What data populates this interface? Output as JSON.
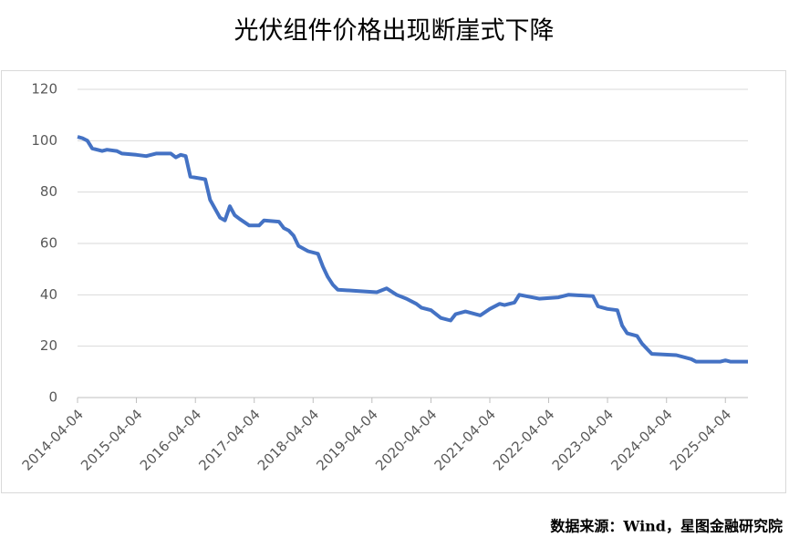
{
  "chart_data": {
    "type": "line",
    "title": "光伏组件价格出现断崖式下降",
    "source": "数据来源：Wind，星图金融研究院",
    "x": [
      "2014-04-04",
      "2014-05-04",
      "2014-06-04",
      "2014-07-04",
      "2014-09-04",
      "2014-10-04",
      "2014-12-04",
      "2015-01-04",
      "2015-04-04",
      "2015-06-04",
      "2015-08-04",
      "2015-11-04",
      "2015-12-04",
      "2016-01-04",
      "2016-02-04",
      "2016-03-04",
      "2016-06-04",
      "2016-07-04",
      "2016-09-04",
      "2016-10-04",
      "2016-11-04",
      "2016-12-04",
      "2017-01-04",
      "2017-03-04",
      "2017-05-04",
      "2017-06-04",
      "2017-09-04",
      "2017-10-04",
      "2017-11-04",
      "2017-12-04",
      "2018-01-04",
      "2018-03-04",
      "2018-05-04",
      "2018-06-04",
      "2018-07-04",
      "2018-08-04",
      "2018-09-04",
      "2019-01-04",
      "2019-05-04",
      "2019-07-04",
      "2019-09-04",
      "2019-11-04",
      "2020-01-04",
      "2020-02-04",
      "2020-04-04",
      "2020-06-04",
      "2020-08-04",
      "2020-09-04",
      "2020-11-04",
      "2021-02-04",
      "2021-04-04",
      "2021-06-04",
      "2021-07-04",
      "2021-09-04",
      "2021-10-04",
      "2022-02-04",
      "2022-06-04",
      "2022-08-04",
      "2023-01-04",
      "2023-02-04",
      "2023-04-04",
      "2023-06-04",
      "2023-07-04",
      "2023-08-04",
      "2023-10-04",
      "2023-11-04",
      "2023-12-04",
      "2024-01-04",
      "2024-06-04",
      "2024-09-04",
      "2024-10-04",
      "2025-03-04",
      "2025-04-04",
      "2025-05-04",
      "2025-08-22"
    ],
    "series": [
      {
        "name": "光伏组件价格",
        "color": "#4472c4",
        "values": [
          101.5,
          101,
          100,
          97,
          96,
          96.5,
          96,
          95,
          94.5,
          94,
          95,
          95,
          93.5,
          94.5,
          94,
          86,
          85,
          77,
          70,
          69,
          74.5,
          71,
          69.5,
          67,
          67,
          69,
          68.5,
          66,
          65,
          63,
          59,
          57,
          56,
          51,
          47,
          44,
          42,
          41.5,
          41,
          42.5,
          40,
          38.5,
          36.5,
          35,
          34,
          31,
          30,
          32.5,
          33.5,
          32,
          34.5,
          36.5,
          36,
          37,
          40,
          38.5,
          39,
          40,
          39.5,
          35.5,
          34.5,
          34,
          28,
          25,
          24,
          21,
          19,
          17,
          16.5,
          15,
          14,
          14,
          14.5,
          14,
          14
        ]
      }
    ],
    "xlim": [
      "2014-04-04",
      "2025-08-22"
    ],
    "xticks": [
      "2014-04-04",
      "2015-04-04",
      "2016-04-04",
      "2017-04-04",
      "2018-04-04",
      "2019-04-04",
      "2020-04-04",
      "2021-04-04",
      "2022-04-04",
      "2023-04-04",
      "2024-04-04",
      "2025-04-04"
    ],
    "ylim": [
      0,
      120
    ],
    "yticks": [
      0,
      20,
      40,
      60,
      80,
      100,
      120
    ],
    "grid": true
  }
}
